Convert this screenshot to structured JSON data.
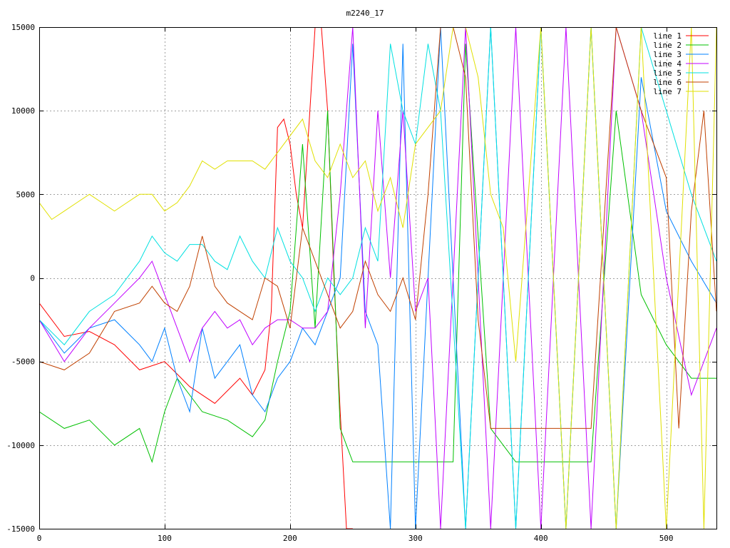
{
  "chart_data": {
    "type": "line",
    "title": "m2240_17",
    "xlabel": "",
    "ylabel": "",
    "xlim": [
      0,
      540
    ],
    "ylim": [
      -15000,
      15000
    ],
    "xticks": [
      0,
      100,
      200,
      300,
      400,
      500
    ],
    "yticks": [
      -15000,
      -10000,
      -5000,
      0,
      5000,
      10000,
      15000
    ],
    "grid": true,
    "legend_position": "top-right",
    "series": [
      {
        "name": "line 1",
        "color": "#ff0000",
        "x": [
          0,
          20,
          40,
          60,
          80,
          100,
          120,
          140,
          160,
          170,
          180,
          185,
          190,
          195,
          200,
          205,
          210,
          215,
          220,
          225,
          230,
          235,
          240,
          245,
          250
        ],
        "y": [
          -1500,
          -3500,
          -3200,
          -4000,
          -5500,
          -5000,
          -6500,
          -7500,
          -6000,
          -7000,
          -5500,
          -2000,
          9000,
          9500,
          8000,
          5000,
          3000,
          9000,
          15000,
          15000,
          10000,
          0,
          -8000,
          -15000,
          -15000
        ]
      },
      {
        "name": "line 2",
        "color": "#00c000",
        "x": [
          0,
          20,
          40,
          60,
          80,
          90,
          100,
          110,
          130,
          150,
          170,
          180,
          190,
          200,
          210,
          220,
          230,
          240,
          250,
          260,
          280,
          300,
          320,
          330,
          340,
          360,
          380,
          390,
          400,
          420,
          440,
          460,
          480,
          500,
          520,
          540
        ],
        "y": [
          -8000,
          -9000,
          -8500,
          -10000,
          -9000,
          -11000,
          -8000,
          -6000,
          -8000,
          -8500,
          -9500,
          -8500,
          -5000,
          -2000,
          8000,
          -3000,
          10000,
          -9000,
          -11000,
          -11000,
          -11000,
          -11000,
          -11000,
          -11000,
          14000,
          -9000,
          -11000,
          -11000,
          -11000,
          -11000,
          -11000,
          10000,
          -1000,
          -4000,
          -6000,
          -6000
        ]
      },
      {
        "name": "line 3",
        "color": "#0080ff",
        "x": [
          0,
          20,
          40,
          60,
          80,
          90,
          100,
          110,
          120,
          130,
          140,
          150,
          160,
          170,
          180,
          190,
          200,
          210,
          220,
          230,
          240,
          250,
          260,
          270,
          280,
          290,
          300,
          320,
          340,
          360,
          380,
          400,
          420,
          440,
          460,
          480,
          500,
          520,
          540
        ],
        "y": [
          -2500,
          -4500,
          -3000,
          -2500,
          -4000,
          -5000,
          -3000,
          -6000,
          -8000,
          -3000,
          -6000,
          -5000,
          -4000,
          -7000,
          -8000,
          -6000,
          -5000,
          -3000,
          -4000,
          -2000,
          0,
          14000,
          -2000,
          -4000,
          -15000,
          14000,
          -15000,
          15000,
          -15000,
          15000,
          -15000,
          15000,
          -15000,
          15000,
          -15000,
          12000,
          4000,
          1000,
          -1500
        ]
      },
      {
        "name": "line 4",
        "color": "#c000ff",
        "x": [
          0,
          20,
          40,
          60,
          80,
          90,
          100,
          110,
          120,
          130,
          140,
          150,
          160,
          170,
          180,
          190,
          200,
          210,
          220,
          230,
          240,
          250,
          260,
          270,
          280,
          290,
          300,
          310,
          320,
          340,
          360,
          380,
          400,
          420,
          440,
          460,
          480,
          500,
          520,
          540
        ],
        "y": [
          -2500,
          -5000,
          -3000,
          -1500,
          0,
          1000,
          -1000,
          -3000,
          -5000,
          -3000,
          -2000,
          -3000,
          -2500,
          -4000,
          -3000,
          -2500,
          -2500,
          -3000,
          -3000,
          -2000,
          5000,
          15000,
          -3000,
          10000,
          0,
          10000,
          -2000,
          0,
          -15000,
          15000,
          -15000,
          15000,
          -15000,
          15000,
          -15000,
          15000,
          10000,
          0,
          -7000,
          -3000
        ]
      },
      {
        "name": "line 5",
        "color": "#00e0e0",
        "x": [
          0,
          20,
          40,
          60,
          80,
          90,
          100,
          110,
          120,
          130,
          140,
          150,
          160,
          170,
          180,
          190,
          200,
          210,
          220,
          230,
          240,
          250,
          260,
          270,
          280,
          290,
          300,
          310,
          320,
          340,
          360,
          380,
          400,
          420,
          440,
          460,
          480,
          500,
          520,
          540
        ],
        "y": [
          -2500,
          -4000,
          -2000,
          -1000,
          1000,
          2500,
          1500,
          1000,
          2000,
          2000,
          1000,
          500,
          2500,
          1000,
          0,
          3000,
          1000,
          0,
          -2000,
          0,
          -1000,
          0,
          3000,
          1000,
          14000,
          10000,
          8000,
          14000,
          10000,
          -15000,
          15000,
          -15000,
          15000,
          -15000,
          15000,
          -15000,
          15000,
          10000,
          5000,
          1000
        ]
      },
      {
        "name": "line 6",
        "color": "#c04000",
        "x": [
          0,
          20,
          40,
          60,
          80,
          90,
          100,
          110,
          120,
          130,
          140,
          150,
          160,
          170,
          180,
          190,
          200,
          210,
          220,
          230,
          240,
          250,
          260,
          270,
          280,
          290,
          300,
          310,
          320,
          330,
          340,
          350,
          360,
          370,
          380,
          400,
          420,
          440,
          460,
          480,
          500,
          510,
          520,
          530,
          540
        ],
        "y": [
          -5000,
          -5500,
          -4500,
          -2000,
          -1500,
          -500,
          -1500,
          -2000,
          -500,
          2500,
          -500,
          -1500,
          -2000,
          -2500,
          0,
          -500,
          -3000,
          3000,
          1000,
          -1000,
          -3000,
          -2000,
          1000,
          -1000,
          -2000,
          0,
          -2500,
          5000,
          15000,
          15000,
          12000,
          -2500,
          -9000,
          -9000,
          -9000,
          -9000,
          -9000,
          -9000,
          15000,
          10000,
          6000,
          -9000,
          4000,
          10000,
          -2000
        ]
      },
      {
        "name": "line 7",
        "color": "#e0e000",
        "x": [
          0,
          10,
          20,
          30,
          40,
          50,
          60,
          70,
          80,
          90,
          100,
          110,
          120,
          130,
          140,
          150,
          160,
          170,
          180,
          190,
          200,
          210,
          220,
          230,
          240,
          250,
          260,
          270,
          280,
          290,
          300,
          310,
          320,
          330,
          340,
          350,
          360,
          370,
          380,
          400,
          420,
          440,
          460,
          480,
          500,
          520,
          530,
          540
        ],
        "y": [
          4500,
          3500,
          4000,
          4500,
          5000,
          4500,
          4000,
          4500,
          5000,
          5000,
          4000,
          4500,
          5500,
          7000,
          6500,
          7000,
          7000,
          7000,
          6500,
          7500,
          8500,
          9500,
          7000,
          6000,
          8000,
          6000,
          7000,
          4000,
          6000,
          3000,
          8000,
          9000,
          10000,
          15000,
          15000,
          12000,
          5000,
          3000,
          -5000,
          15000,
          -15000,
          15000,
          -15000,
          15000,
          -15000,
          15000,
          -15000,
          15000
        ]
      }
    ]
  }
}
